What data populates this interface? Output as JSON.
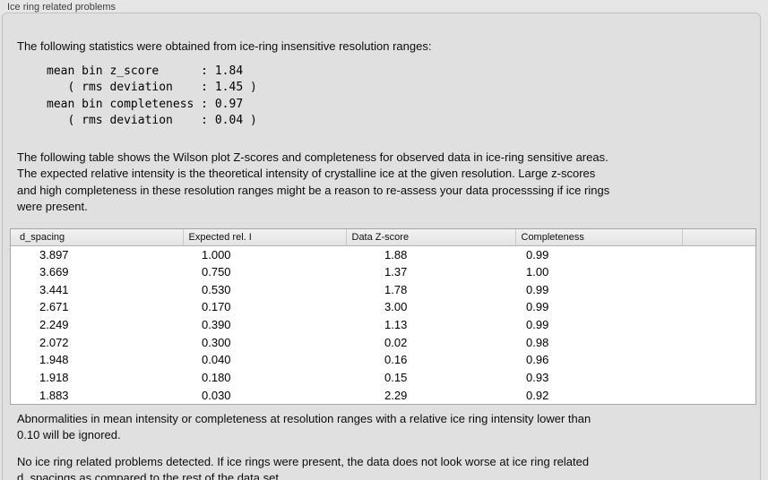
{
  "group": {
    "label": "Ice ring related problems"
  },
  "texts": {
    "intro": "The following statistics were obtained from ice-ring insensitive resolution ranges:",
    "stats": "mean bin z_score      : 1.84\n   ( rms deviation    : 1.45 )\nmean bin completeness : 0.97\n   ( rms deviation    : 0.04 )",
    "table_desc": "The following table shows the Wilson plot Z-scores and completeness for observed data in ice-ring sensitive areas.\nThe expected relative intensity is the theoretical intensity of crystalline ice at the given resolution. Large z-scores\nand high completeness in these resolution ranges might be a reason to re-assess your data processsing if ice rings\nwere present.",
    "ignored_note": "Abnormalities in mean intensity or completeness at resolution ranges with a relative ice ring intensity lower than\n0.10 will be ignored.",
    "conclusion": "No ice ring related problems detected. If ice rings were present, the data does not look worse at ice ring related\nd_spacings as compared to the rest of the data set."
  },
  "stats_values": {
    "mean_bin_z_score": "1.84",
    "z_score_rms_deviation": "1.45",
    "mean_bin_completeness": "0.97",
    "completeness_rms_deviation": "0.04"
  },
  "table": {
    "columns": [
      "d_spacing",
      "Expected rel. I",
      "Data Z-score",
      "Completeness",
      ""
    ],
    "rows": [
      [
        "3.897",
        "1.000",
        "1.88",
        "0.99",
        ""
      ],
      [
        "3.669",
        "0.750",
        "1.37",
        "1.00",
        ""
      ],
      [
        "3.441",
        "0.530",
        "1.78",
        "0.99",
        ""
      ],
      [
        "2.671",
        "0.170",
        "3.00",
        "0.99",
        ""
      ],
      [
        "2.249",
        "0.390",
        "1.13",
        "0.99",
        ""
      ],
      [
        "2.072",
        "0.300",
        "0.02",
        "0.98",
        ""
      ],
      [
        "1.948",
        "0.040",
        "0.16",
        "0.96",
        ""
      ],
      [
        "1.918",
        "0.180",
        "0.15",
        "0.93",
        ""
      ],
      [
        "1.883",
        "0.030",
        "2.29",
        "0.92",
        ""
      ]
    ]
  },
  "colors": {
    "page_background": "#e6e6e6",
    "group_box_background": "#e0e0e0",
    "group_box_border": "#c2c2c2",
    "table_border": "#a6a6a6",
    "table_header_background": "#ededed",
    "table_body_background": "#ffffff",
    "text": "#0c0c0c",
    "label_text": "#3d3d3d"
  }
}
